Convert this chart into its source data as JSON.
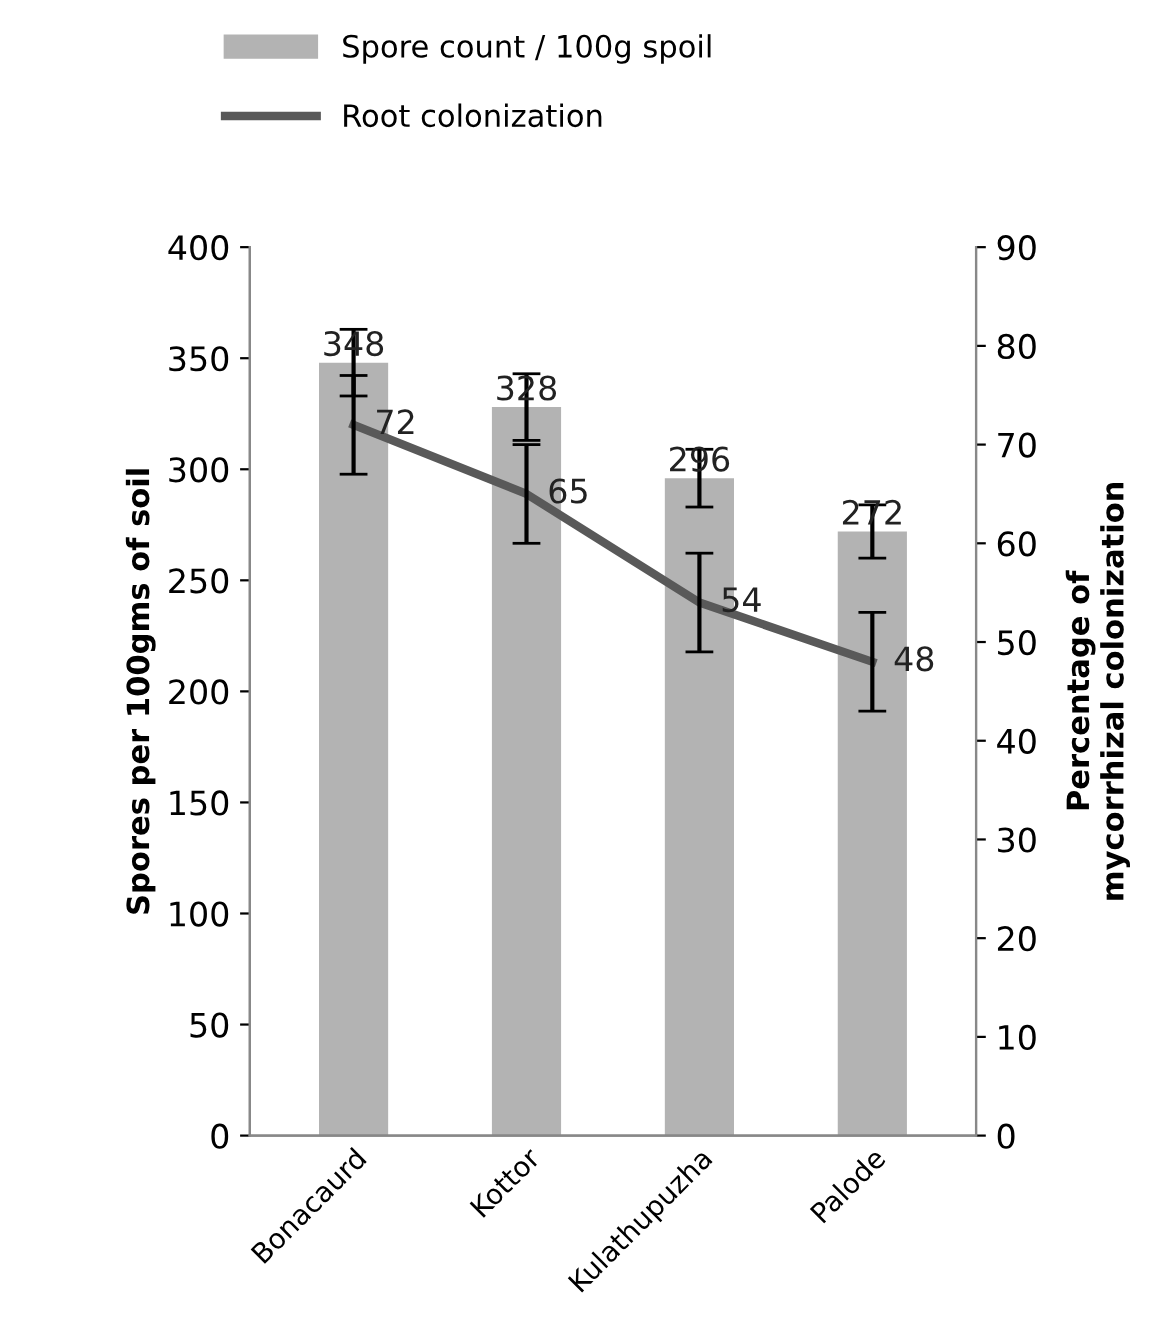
{
  "chart_data": {
    "type": "bar",
    "ylabel": "Spores per 100gms of soil",
    "y2label": "Percentage of\nmycorrhizal colonization",
    "categories": [
      "Bonacaurd",
      "Kottor",
      "Kulathupuzha",
      "Palode"
    ],
    "series": [
      {
        "name": "Spore count / 100g spoil",
        "color": "#b3b3b3",
        "values": [
          348,
          328,
          296,
          272
        ],
        "errors": [
          15,
          15,
          13,
          12
        ]
      },
      {
        "name": "Root colonization",
        "type": "line",
        "axis": "y2",
        "color": "#595959",
        "values": [
          72,
          65,
          54,
          48
        ],
        "errors": [
          5,
          5,
          5,
          5
        ]
      }
    ],
    "ylim": [
      0,
      400
    ],
    "yticks": [
      0,
      50,
      100,
      150,
      200,
      250,
      300,
      350,
      400
    ],
    "y2lim": [
      0,
      90
    ],
    "y2ticks": [
      0,
      10,
      20,
      30,
      40,
      50,
      60,
      70,
      80,
      90
    ],
    "data_labels": true,
    "legend": "top left",
    "grid": false,
    "marker": "none",
    "line_style": "solid"
  }
}
